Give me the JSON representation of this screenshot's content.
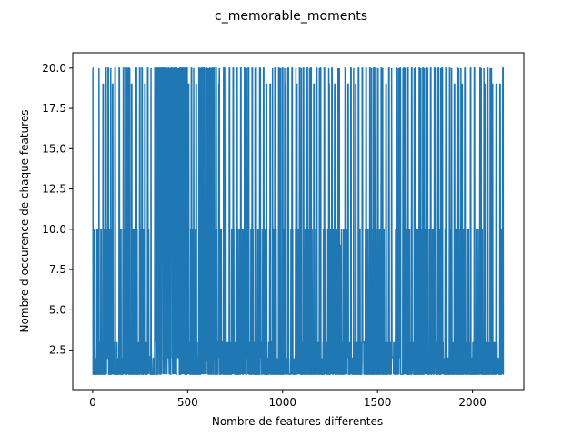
{
  "chart_data": {
    "type": "line",
    "title": "c_memorable_moments",
    "xlabel": "Nombre de features differentes",
    "ylabel": "Nombre d occurence de chaque features",
    "xlim": [
      -105,
      2270
    ],
    "ylim": [
      0.05,
      20.95
    ],
    "x_ticks": [
      0,
      500,
      1000,
      1500,
      2000
    ],
    "x_tick_labels": [
      "0",
      "500",
      "1000",
      "1500",
      "2000"
    ],
    "y_ticks": [
      2.5,
      5.0,
      7.5,
      10.0,
      12.5,
      15.0,
      17.5,
      20.0
    ],
    "y_tick_labels": [
      "2.5",
      "5.0",
      "7.5",
      "10.0",
      "12.5",
      "15.0",
      "17.5",
      "20.0"
    ],
    "grid": false,
    "series": [
      {
        "color": "#1f77b4",
        "x_start": 0,
        "x_end": 2164,
        "values_summary": "dense per-feature occurrence counts; each x is one feature, value between 1 and 20",
        "levels": [
          1,
          2,
          3,
          10,
          19,
          20
        ],
        "spikes_to_20": [
          0,
          55,
          70,
          82,
          105,
          118,
          140,
          162,
          178,
          190,
          205,
          230,
          248,
          260,
          275,
          290,
          330,
          340,
          365,
          380,
          395,
          415,
          430,
          445,
          460,
          480,
          505,
          520,
          545,
          560,
          580,
          600,
          615,
          630,
          650,
          665,
          690,
          700,
          720,
          740,
          760,
          780,
          800,
          820,
          840,
          860,
          880,
          900,
          915,
          935,
          960,
          980,
          1000,
          1015,
          1030,
          1050,
          1075,
          1090,
          1110,
          1130,
          1150,
          1165,
          1180,
          1200,
          1220,
          1245,
          1260,
          1275,
          1330,
          1345,
          1360,
          1385,
          1400,
          1420,
          1440,
          1460,
          1480,
          1490,
          1520,
          1545,
          1560,
          1600,
          1620,
          1640,
          1660,
          1680,
          1700,
          1720,
          1740,
          1760,
          1780,
          1800,
          1820,
          1840,
          1860,
          1880,
          1905,
          1920,
          1945,
          1960,
          1990,
          2010,
          2040,
          2065,
          2080,
          2105,
          2125,
          2145,
          2160
        ],
        "plateaus": [
          {
            "x_from": 325,
            "x_to": 500,
            "value": 20
          },
          {
            "x_from": 560,
            "x_to": 640,
            "value": 20
          },
          {
            "x_from": 1290,
            "x_to": 1305,
            "value": 9
          }
        ],
        "notable_lows": [
          {
            "x": 595,
            "value": 1.9
          },
          {
            "x": 1580,
            "value": 2.1
          },
          {
            "x": 300,
            "value": 2.1
          }
        ]
      }
    ]
  }
}
